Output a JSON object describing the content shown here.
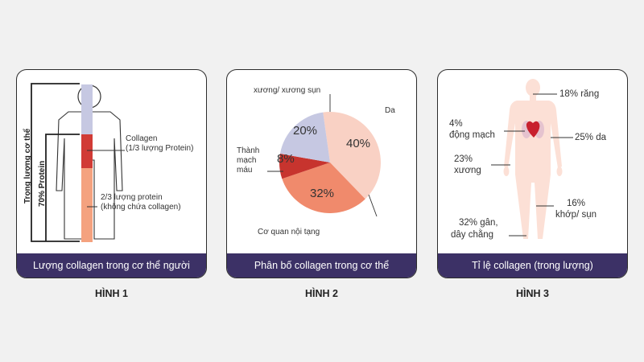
{
  "figures": [
    {
      "label": "HÌNH 1",
      "caption": "Lượng collagen trong cơ thể người",
      "annotations": {
        "vertical_total": "Trọng lượng cơ thể",
        "vertical_protein": "70% Protein",
        "collagen_line1": "Collagen",
        "collagen_line2": "(1/3 lượng Protein)",
        "noncollagen_line1": "2/3 lượng protein",
        "noncollagen_line2": "(không chứa collagen)"
      },
      "colors": {
        "collagen": "#d13b36",
        "water": "#c6c8e2",
        "other_protein": "#f4a27f"
      }
    },
    {
      "label": "HÌNH 2",
      "caption": "Phân bố collagen trong cơ thể",
      "pie": {
        "slices": [
          {
            "name": "Da",
            "value": 40,
            "value_label": "40%",
            "color": "#f9d1c4"
          },
          {
            "name": "Cơ quan nội tạng",
            "value": 32,
            "value_label": "32%",
            "color": "#f08a6c"
          },
          {
            "name_line1": "Thành",
            "name_line2": "mạch",
            "name_line3": "máu",
            "value": 8,
            "value_label": "8%",
            "color": "#c7342e"
          },
          {
            "name": "xương/ xương sụn",
            "value": 20,
            "value_label": "20%",
            "color": "#c6c8e2"
          }
        ]
      }
    },
    {
      "label": "HÌNH 3",
      "caption": "Tỉ lệ collagen (trong lượng)",
      "annotations": {
        "teeth": "18% răng",
        "vessel_pct": "4%",
        "vessel_name": "động mạch",
        "skin": "25% da",
        "bone_pct": "23%",
        "bone_name": "xương",
        "cartilage_pct": "16%",
        "cartilage_name": "khớp/ sụn",
        "tendon_pct": "32% gân,",
        "tendon_name": "dây chằng"
      },
      "colors": {
        "body": "#fce0d6",
        "heart": "#c8202e",
        "lungs": "#e5c3cf"
      }
    }
  ]
}
